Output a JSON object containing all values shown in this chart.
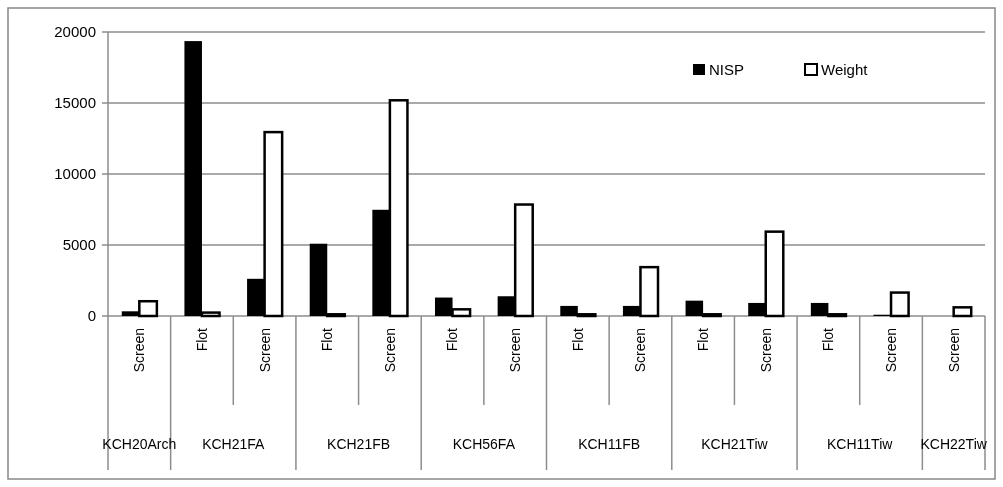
{
  "chart_data": {
    "type": "bar",
    "categories": [
      "Screen",
      "Flot",
      "Screen",
      "Flot",
      "Screen",
      "Flot",
      "Screen",
      "Flot",
      "Screen",
      "Flot",
      "Screen",
      "Flot",
      "Screen",
      "Screen"
    ],
    "series": [
      {
        "name": "NISP",
        "color": "#000000",
        "values": [
          330,
          19360,
          2620,
          5090,
          7480,
          1300,
          1390,
          710,
          710,
          1080,
          920,
          920,
          90,
          0
        ]
      },
      {
        "name": "Weight",
        "color": "#ffffff",
        "values": [
          1040,
          240,
          12950,
          120,
          15190,
          470,
          7850,
          120,
          3440,
          120,
          5940,
          120,
          1650,
          610
        ]
      }
    ],
    "annotations": [
      "KCH20Arch",
      "KCH21FA",
      "KCH21FB",
      "KCH56FA",
      "KCH11FB",
      "KCH21Tiw",
      "KCH11Tiw",
      "KCH22Tiw"
    ],
    "ylim": [
      0,
      20000
    ],
    "yticks": [
      0,
      5000,
      10000,
      15000,
      20000
    ],
    "grid": "y",
    "legend": "top right"
  }
}
